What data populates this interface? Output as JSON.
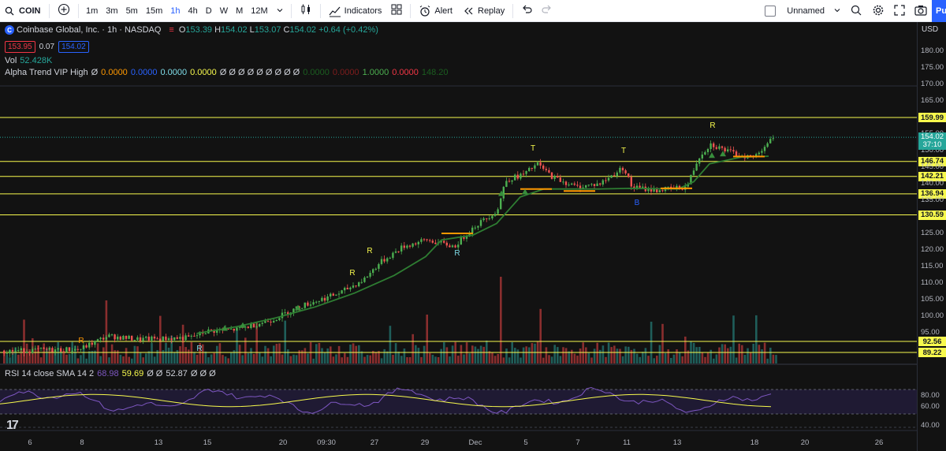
{
  "toolbar": {
    "symbol": "COIN",
    "timeframes": [
      "1m",
      "3m",
      "5m",
      "15m",
      "1h",
      "4h",
      "D",
      "W",
      "M",
      "12M"
    ],
    "active_timeframe": "1h",
    "indicators_label": "Indicators",
    "alert_label": "Alert",
    "replay_label": "Replay",
    "layout_name": "Unnamed",
    "publish_label": "Pu"
  },
  "legend": {
    "title": "Coinbase Global, Inc. · 1h · NASDAQ",
    "logo_letter": "C",
    "o_label": "O",
    "o_value": "153.39",
    "h_label": "H",
    "h_value": "154.02",
    "l_label": "L",
    "l_value": "153.07",
    "c_label": "C",
    "c_value": "154.02",
    "change": "+0.64 (+0.42%)",
    "sell_price": "153.95",
    "spread": "0.07",
    "buy_price": "154.02",
    "vol_label": "Vol",
    "vol_value": "52.428K",
    "alpha_label": "Alpha Trend VIP High",
    "alpha_values": [
      {
        "text": "Ø",
        "color": "#d1d4dc"
      },
      {
        "text": "0.0000",
        "color": "#ff9800"
      },
      {
        "text": "0.0000",
        "color": "#2962ff"
      },
      {
        "text": "0.0000",
        "color": "#80deea"
      },
      {
        "text": "0.0000",
        "color": "#f7f94d"
      },
      {
        "text": "Ø Ø Ø Ø Ø Ø Ø Ø Ø",
        "color": "#d1d4dc"
      },
      {
        "text": "0.0000",
        "color": "#1b5e20"
      },
      {
        "text": "0.0000",
        "color": "#7f1d1d"
      },
      {
        "text": "1.0000",
        "color": "#4caf50"
      },
      {
        "text": "0.0000",
        "color": "#f23645"
      },
      {
        "text": "148.20",
        "color": "#1b5e20"
      }
    ],
    "rsi_label": "RSI 14 close SMA 14 2",
    "rsi_values": [
      {
        "text": "68.98",
        "color": "#7e57c2"
      },
      {
        "text": "59.69",
        "color": "#f7f94d"
      },
      {
        "text": "Ø Ø",
        "color": "#d1d4dc"
      },
      {
        "text": "52.87",
        "color": "#d1d4dc"
      },
      {
        "text": "Ø Ø Ø",
        "color": "#d1d4dc"
      }
    ]
  },
  "price_axis": {
    "currency": "USD",
    "ticks": [
      "180.00",
      "175.00",
      "170.00",
      "165.00",
      "155.00",
      "150.00",
      "145.00",
      "140.00",
      "135.00",
      "125.00",
      "120.00",
      "115.00",
      "110.00",
      "105.00",
      "100.00",
      "95.00"
    ],
    "levels": [
      "159.99",
      "146.74",
      "142.21",
      "136.94",
      "130.59",
      "92.56",
      "89.22"
    ],
    "current_price": "154.02",
    "countdown": "37:10"
  },
  "rsi_axis": {
    "ticks": [
      "80.00",
      "60.00",
      "40.00"
    ]
  },
  "time_axis": {
    "labels": [
      "6",
      "8",
      "13",
      "15",
      "20",
      "09:30",
      "27",
      "29",
      "Dec",
      "5",
      "7",
      "11",
      "13",
      "18",
      "20",
      "26"
    ]
  },
  "signals": [
    {
      "text": "R",
      "color": "#ff9800"
    },
    {
      "text": "R",
      "color": "#80deea"
    },
    {
      "text": "R",
      "color": "#f7f94d"
    },
    {
      "text": "R",
      "color": "#f7f94d"
    },
    {
      "text": "R",
      "color": "#80deea"
    },
    {
      "text": "T",
      "color": "#f7f94d"
    },
    {
      "text": "T",
      "color": "#f7f94d"
    },
    {
      "text": "B",
      "color": "#2962ff"
    },
    {
      "text": "R",
      "color": "#f7f94d"
    }
  ],
  "colors": {
    "up": "#26a69a",
    "up_candle": "#4caf50",
    "down": "#ef5350",
    "level_line": "#f7f94d",
    "trend": "#2e7d32",
    "rsi": "#7e57c2",
    "rsi_sma": "#f7f94d"
  }
}
